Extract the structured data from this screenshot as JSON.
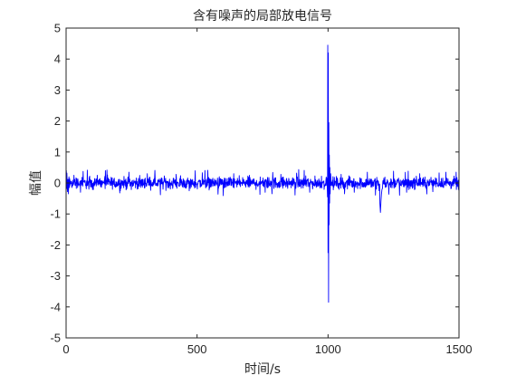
{
  "chart_data": {
    "type": "line",
    "title": "含有噪声的局部放电信号",
    "xlabel": "时间/s",
    "ylabel": "幅值",
    "xlim": [
      0,
      1500
    ],
    "ylim": [
      -5,
      5
    ],
    "xticks": [
      0,
      500,
      1000,
      1500
    ],
    "yticks": [
      -5,
      -4,
      -3,
      -2,
      -1,
      0,
      1,
      2,
      3,
      4,
      5
    ],
    "grid": false,
    "line_color": "#0000ff",
    "noise_amplitude": 0.28,
    "series": [
      {
        "name": "",
        "points": [
          [
            0,
            0.1
          ],
          [
            2,
            -0.18
          ],
          [
            3,
            0.32
          ],
          [
            5,
            -0.28
          ],
          [
            7,
            0.12
          ],
          [
            9,
            -0.35
          ],
          [
            11,
            0.2
          ],
          [
            13,
            -0.15
          ],
          [
            30,
            0.25
          ],
          [
            55,
            -0.3
          ],
          [
            90,
            0.22
          ],
          [
            150,
            0.4
          ],
          [
            205,
            -0.32
          ],
          [
            240,
            0.35
          ],
          [
            310,
            0.3
          ],
          [
            360,
            -0.38
          ],
          [
            420,
            0.28
          ],
          [
            470,
            -0.25
          ],
          [
            520,
            0.33
          ],
          [
            580,
            -0.36
          ],
          [
            640,
            0.3
          ],
          [
            700,
            0.25
          ],
          [
            760,
            -0.3
          ],
          [
            820,
            0.28
          ],
          [
            880,
            0.32
          ],
          [
            930,
            -0.3
          ],
          [
            975,
            0.22
          ],
          [
            996,
            0.15
          ],
          [
            998,
            -0.45
          ],
          [
            999,
            4.45
          ],
          [
            1000,
            -2.25
          ],
          [
            1001,
            4.2
          ],
          [
            1002,
            -3.85
          ],
          [
            1003,
            1.95
          ],
          [
            1004,
            -1.35
          ],
          [
            1005,
            0.9
          ],
          [
            1006,
            -0.65
          ],
          [
            1007,
            0.5
          ],
          [
            1008,
            -0.35
          ],
          [
            1010,
            0.3
          ],
          [
            1020,
            -0.22
          ],
          [
            1050,
            0.28
          ],
          [
            1100,
            -0.3
          ],
          [
            1150,
            0.35
          ],
          [
            1195,
            -0.25
          ],
          [
            1200,
            -0.95
          ],
          [
            1202,
            -0.6
          ],
          [
            1204,
            -0.35
          ],
          [
            1206,
            -0.2
          ],
          [
            1250,
            0.38
          ],
          [
            1300,
            -0.3
          ],
          [
            1350,
            0.3
          ],
          [
            1400,
            -0.28
          ],
          [
            1450,
            0.35
          ],
          [
            1500,
            -0.32
          ]
        ]
      }
    ]
  }
}
